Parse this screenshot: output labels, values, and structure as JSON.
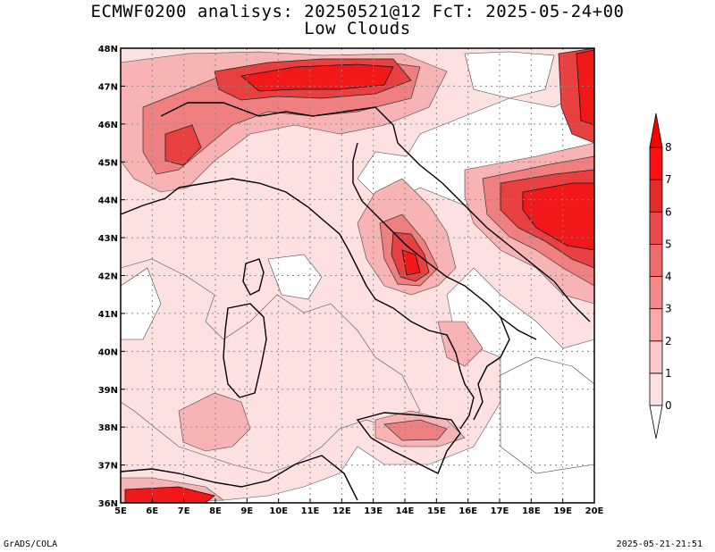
{
  "title_line1": "ECMWF0200 analisys: 20250521@12 FcT: 2025-05-24+00",
  "title_line2": "Low Clouds",
  "footer_left": "GrADS/COLA",
  "footer_right": "2025-05-21-21:51",
  "map": {
    "lon_labels": [
      "5E",
      "6E",
      "7E",
      "8E",
      "9E",
      "10E",
      "11E",
      "12E",
      "13E",
      "14E",
      "15E",
      "16E",
      "17E",
      "18E",
      "19E",
      "20E"
    ],
    "lat_labels": [
      "36N",
      "37N",
      "38N",
      "39N",
      "40N",
      "41N",
      "42N",
      "43N",
      "44N",
      "45N",
      "46N",
      "47N",
      "48N"
    ],
    "lon_range": [
      5,
      20
    ],
    "lat_range": [
      36,
      48
    ]
  },
  "colorbar": {
    "levels": [
      "0",
      "1",
      "2",
      "3",
      "4",
      "5",
      "6",
      "7",
      "8"
    ],
    "colors": [
      "#ffe1e1",
      "#fcc8c8",
      "#f9aaaa",
      "#f58a8a",
      "#f06a6a",
      "#eb4a4a",
      "#e62a2a",
      "#ff1010"
    ]
  },
  "palette": {
    "shade1": "#fde0e0",
    "shade2": "#f8b4b4",
    "shade3": "#f08080",
    "shade4": "#e84040",
    "shade5": "#f01818"
  }
}
